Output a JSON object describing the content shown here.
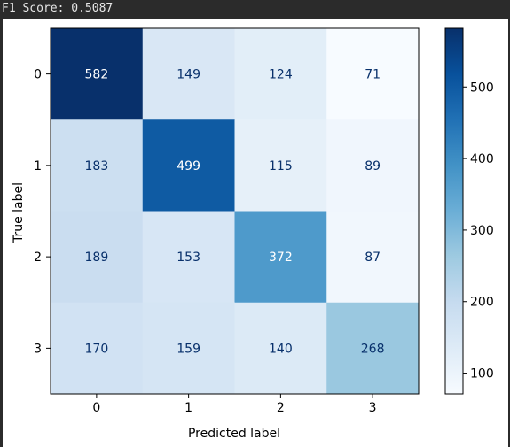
{
  "header": {
    "score_text": "F1 Score: 0.5087"
  },
  "chart_data": {
    "type": "heatmap",
    "title": "",
    "xlabel": "Predicted label",
    "ylabel": "True label",
    "x_categories": [
      "0",
      "1",
      "2",
      "3"
    ],
    "y_categories": [
      "0",
      "1",
      "2",
      "3"
    ],
    "matrix": [
      [
        582,
        149,
        124,
        71
      ],
      [
        183,
        499,
        115,
        89
      ],
      [
        189,
        153,
        372,
        87
      ],
      [
        170,
        159,
        140,
        268
      ]
    ],
    "colormap": "Blues",
    "value_range": [
      71,
      582
    ],
    "colorbar_ticks": [
      100,
      200,
      300,
      400,
      500
    ]
  }
}
